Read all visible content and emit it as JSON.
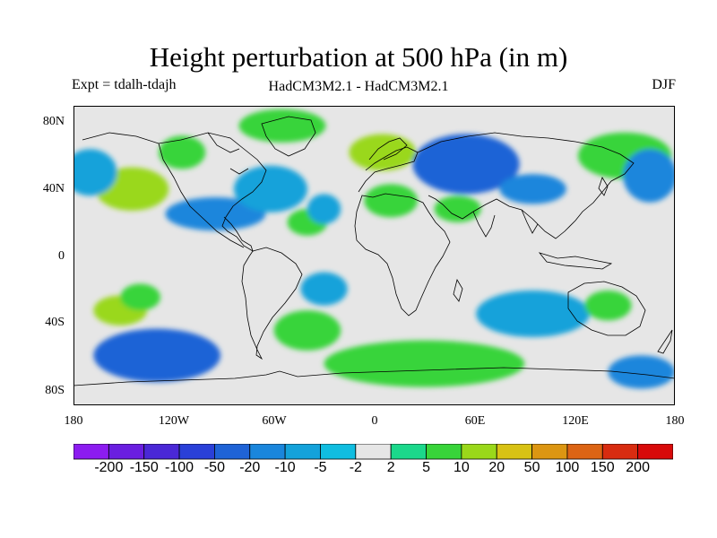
{
  "title": "Height perturbation at 500 hPa (in m)",
  "experiment": "Expt = tdalh-tdajh",
  "model": "HadCM3M2.1 - HadCM3M2.1",
  "season": "DJF",
  "lat_labels": [
    "80N",
    "40N",
    "0",
    "40S",
    "80S"
  ],
  "lon_labels": [
    "180",
    "120W",
    "60W",
    "0",
    "60E",
    "120E",
    "180"
  ],
  "colorbar": {
    "labels": [
      "-200",
      "-150",
      "-100",
      "-50",
      "-20",
      "-10",
      "-5",
      "-2",
      "2",
      "5",
      "10",
      "20",
      "50",
      "100",
      "150",
      "200"
    ],
    "colors": [
      "#8c1cf0",
      "#6a1ee0",
      "#4a28d6",
      "#2a40d8",
      "#1f63d6",
      "#1a86dc",
      "#14a2da",
      "#10bde0",
      "#e6e6e6",
      "#1bd88b",
      "#38d43a",
      "#9ad81a",
      "#d8c214",
      "#dc9612",
      "#dc6414",
      "#d82c10",
      "#d80a0a"
    ]
  },
  "chart_data": {
    "type": "heatmap",
    "title": "Height perturbation at 500 hPa (in m)",
    "xlim": [
      -180,
      180
    ],
    "ylim": [
      -90,
      90
    ],
    "levels": [
      -200,
      -150,
      -100,
      -50,
      -20,
      -10,
      -5,
      -2,
      2,
      5,
      10,
      20,
      50,
      100,
      150,
      200
    ],
    "features": [
      {
        "lon": -145,
        "lat": 40,
        "value": 11,
        "rx": 22,
        "ry": 13
      },
      {
        "lon": -170,
        "lat": 50,
        "value": -6,
        "rx": 16,
        "ry": 14
      },
      {
        "lon": -115,
        "lat": 62,
        "value": 6,
        "rx": 14,
        "ry": 10
      },
      {
        "lon": -95,
        "lat": 25,
        "value": -12,
        "rx": 30,
        "ry": 10
      },
      {
        "lon": -62,
        "lat": 40,
        "value": -8,
        "rx": 22,
        "ry": 14
      },
      {
        "lon": -55,
        "lat": 78,
        "value": 6,
        "rx": 26,
        "ry": 10
      },
      {
        "lon": -40,
        "lat": 20,
        "value": 6,
        "rx": 12,
        "ry": 8
      },
      {
        "lon": -30,
        "lat": 28,
        "value": -6,
        "rx": 10,
        "ry": 9
      },
      {
        "lon": 5,
        "lat": 62,
        "value": 15,
        "rx": 20,
        "ry": 11
      },
      {
        "lon": 10,
        "lat": 33,
        "value": 7,
        "rx": 16,
        "ry": 10
      },
      {
        "lon": 55,
        "lat": 55,
        "value": -25,
        "rx": 32,
        "ry": 18
      },
      {
        "lon": 95,
        "lat": 40,
        "value": -12,
        "rx": 20,
        "ry": 9
      },
      {
        "lon": 50,
        "lat": 28,
        "value": 7,
        "rx": 14,
        "ry": 8
      },
      {
        "lon": 150,
        "lat": 60,
        "value": 6,
        "rx": 28,
        "ry": 14
      },
      {
        "lon": 165,
        "lat": 48,
        "value": -12,
        "rx": 16,
        "ry": 16
      },
      {
        "lon": -152,
        "lat": -33,
        "value": 11,
        "rx": 16,
        "ry": 9
      },
      {
        "lon": -140,
        "lat": -25,
        "value": 6,
        "rx": 12,
        "ry": 8
      },
      {
        "lon": -130,
        "lat": -60,
        "value": -25,
        "rx": 38,
        "ry": 16
      },
      {
        "lon": -40,
        "lat": -45,
        "value": 6,
        "rx": 20,
        "ry": 12
      },
      {
        "lon": 30,
        "lat": -65,
        "value": 8,
        "rx": 60,
        "ry": 14
      },
      {
        "lon": 95,
        "lat": -35,
        "value": -8,
        "rx": 34,
        "ry": 14
      },
      {
        "lon": 140,
        "lat": -30,
        "value": 6,
        "rx": 14,
        "ry": 9
      },
      {
        "lon": 160,
        "lat": -70,
        "value": -12,
        "rx": 20,
        "ry": 10
      },
      {
        "lon": -30,
        "lat": -20,
        "value": -6,
        "rx": 14,
        "ry": 10
      }
    ]
  }
}
